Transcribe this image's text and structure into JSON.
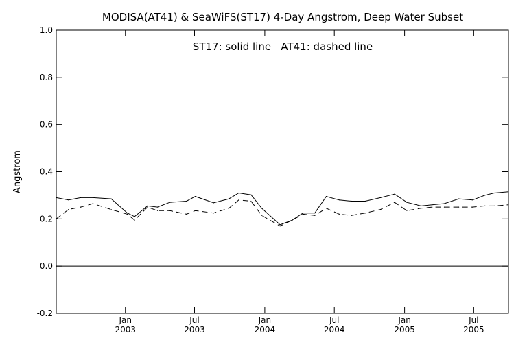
{
  "chart_data": {
    "type": "line",
    "title": "MODISA(AT41) & SeaWiFS(ST17) 4-Day Angstrom, Deep Water Subset",
    "annotation": "ST17: solid line   AT41: dashed line",
    "xlabel": "",
    "ylabel": "Angstrom",
    "xlim": [
      "2002-07-04",
      "2005-09-30"
    ],
    "ylim": [
      -0.2,
      1.0
    ],
    "yticks": [
      "-0.2",
      "0.0",
      "0.2",
      "0.4",
      "0.6",
      "0.8",
      "1.0"
    ],
    "xticks": [
      {
        "date": "2003-01-01",
        "month": "Jan",
        "year": "2003"
      },
      {
        "date": "2003-07-01",
        "month": "Jul",
        "year": "2003"
      },
      {
        "date": "2004-01-01",
        "month": "Jan",
        "year": "2004"
      },
      {
        "date": "2004-07-01",
        "month": "Jul",
        "year": "2004"
      },
      {
        "date": "2005-01-01",
        "month": "Jan",
        "year": "2005"
      },
      {
        "date": "2005-07-01",
        "month": "Jul",
        "year": "2005"
      }
    ],
    "reference_line": 0.0,
    "grid": false,
    "legend": "none",
    "series": [
      {
        "style": "solid",
        "x": [
          "2002-07-04",
          "2002-08-05",
          "2002-09-06",
          "2002-10-08",
          "2002-11-25",
          "2003-01-06",
          "2003-01-25",
          "2003-02-28",
          "2003-03-26",
          "2003-04-27",
          "2003-06-10",
          "2003-07-03",
          "2003-08-20",
          "2003-09-29",
          "2003-10-25",
          "2003-11-26",
          "2003-12-24",
          "2004-02-10",
          "2004-03-13",
          "2004-04-10",
          "2004-05-11",
          "2004-06-10",
          "2004-07-14",
          "2004-08-15",
          "2004-09-20",
          "2004-10-30",
          "2004-12-06",
          "2005-01-07",
          "2005-02-13",
          "2005-03-14",
          "2005-04-15",
          "2005-05-23",
          "2005-06-28",
          "2005-07-30",
          "2005-08-24",
          "2005-09-30"
        ],
        "values": [
          0.29,
          0.28,
          0.29,
          0.29,
          0.285,
          0.225,
          0.21,
          0.255,
          0.25,
          0.27,
          0.275,
          0.295,
          0.268,
          0.285,
          0.31,
          0.302,
          0.245,
          0.175,
          0.195,
          0.225,
          0.225,
          0.295,
          0.28,
          0.275,
          0.275,
          0.29,
          0.305,
          0.27,
          0.255,
          0.26,
          0.265,
          0.285,
          0.28,
          0.3,
          0.31,
          0.315
        ]
      },
      {
        "style": "dashed",
        "x": [
          "2002-07-04",
          "2002-08-05",
          "2002-09-06",
          "2002-10-08",
          "2002-11-25",
          "2003-01-06",
          "2003-01-25",
          "2003-02-28",
          "2003-03-26",
          "2003-04-27",
          "2003-06-10",
          "2003-07-03",
          "2003-08-20",
          "2003-09-29",
          "2003-10-25",
          "2003-11-26",
          "2003-12-24",
          "2004-02-10",
          "2004-03-13",
          "2004-04-10",
          "2004-05-11",
          "2004-06-10",
          "2004-07-14",
          "2004-08-15",
          "2004-09-20",
          "2004-10-30",
          "2004-12-06",
          "2005-01-07",
          "2005-02-13",
          "2005-03-14",
          "2005-04-15",
          "2005-05-23",
          "2005-06-28",
          "2005-07-30",
          "2005-08-24",
          "2005-09-30"
        ],
        "values": [
          0.2,
          0.24,
          0.25,
          0.265,
          0.24,
          0.22,
          0.195,
          0.25,
          0.235,
          0.235,
          0.22,
          0.235,
          0.225,
          0.245,
          0.28,
          0.275,
          0.215,
          0.17,
          0.195,
          0.22,
          0.215,
          0.245,
          0.22,
          0.215,
          0.225,
          0.24,
          0.27,
          0.235,
          0.245,
          0.25,
          0.25,
          0.25,
          0.25,
          0.255,
          0.255,
          0.26
        ]
      }
    ]
  }
}
